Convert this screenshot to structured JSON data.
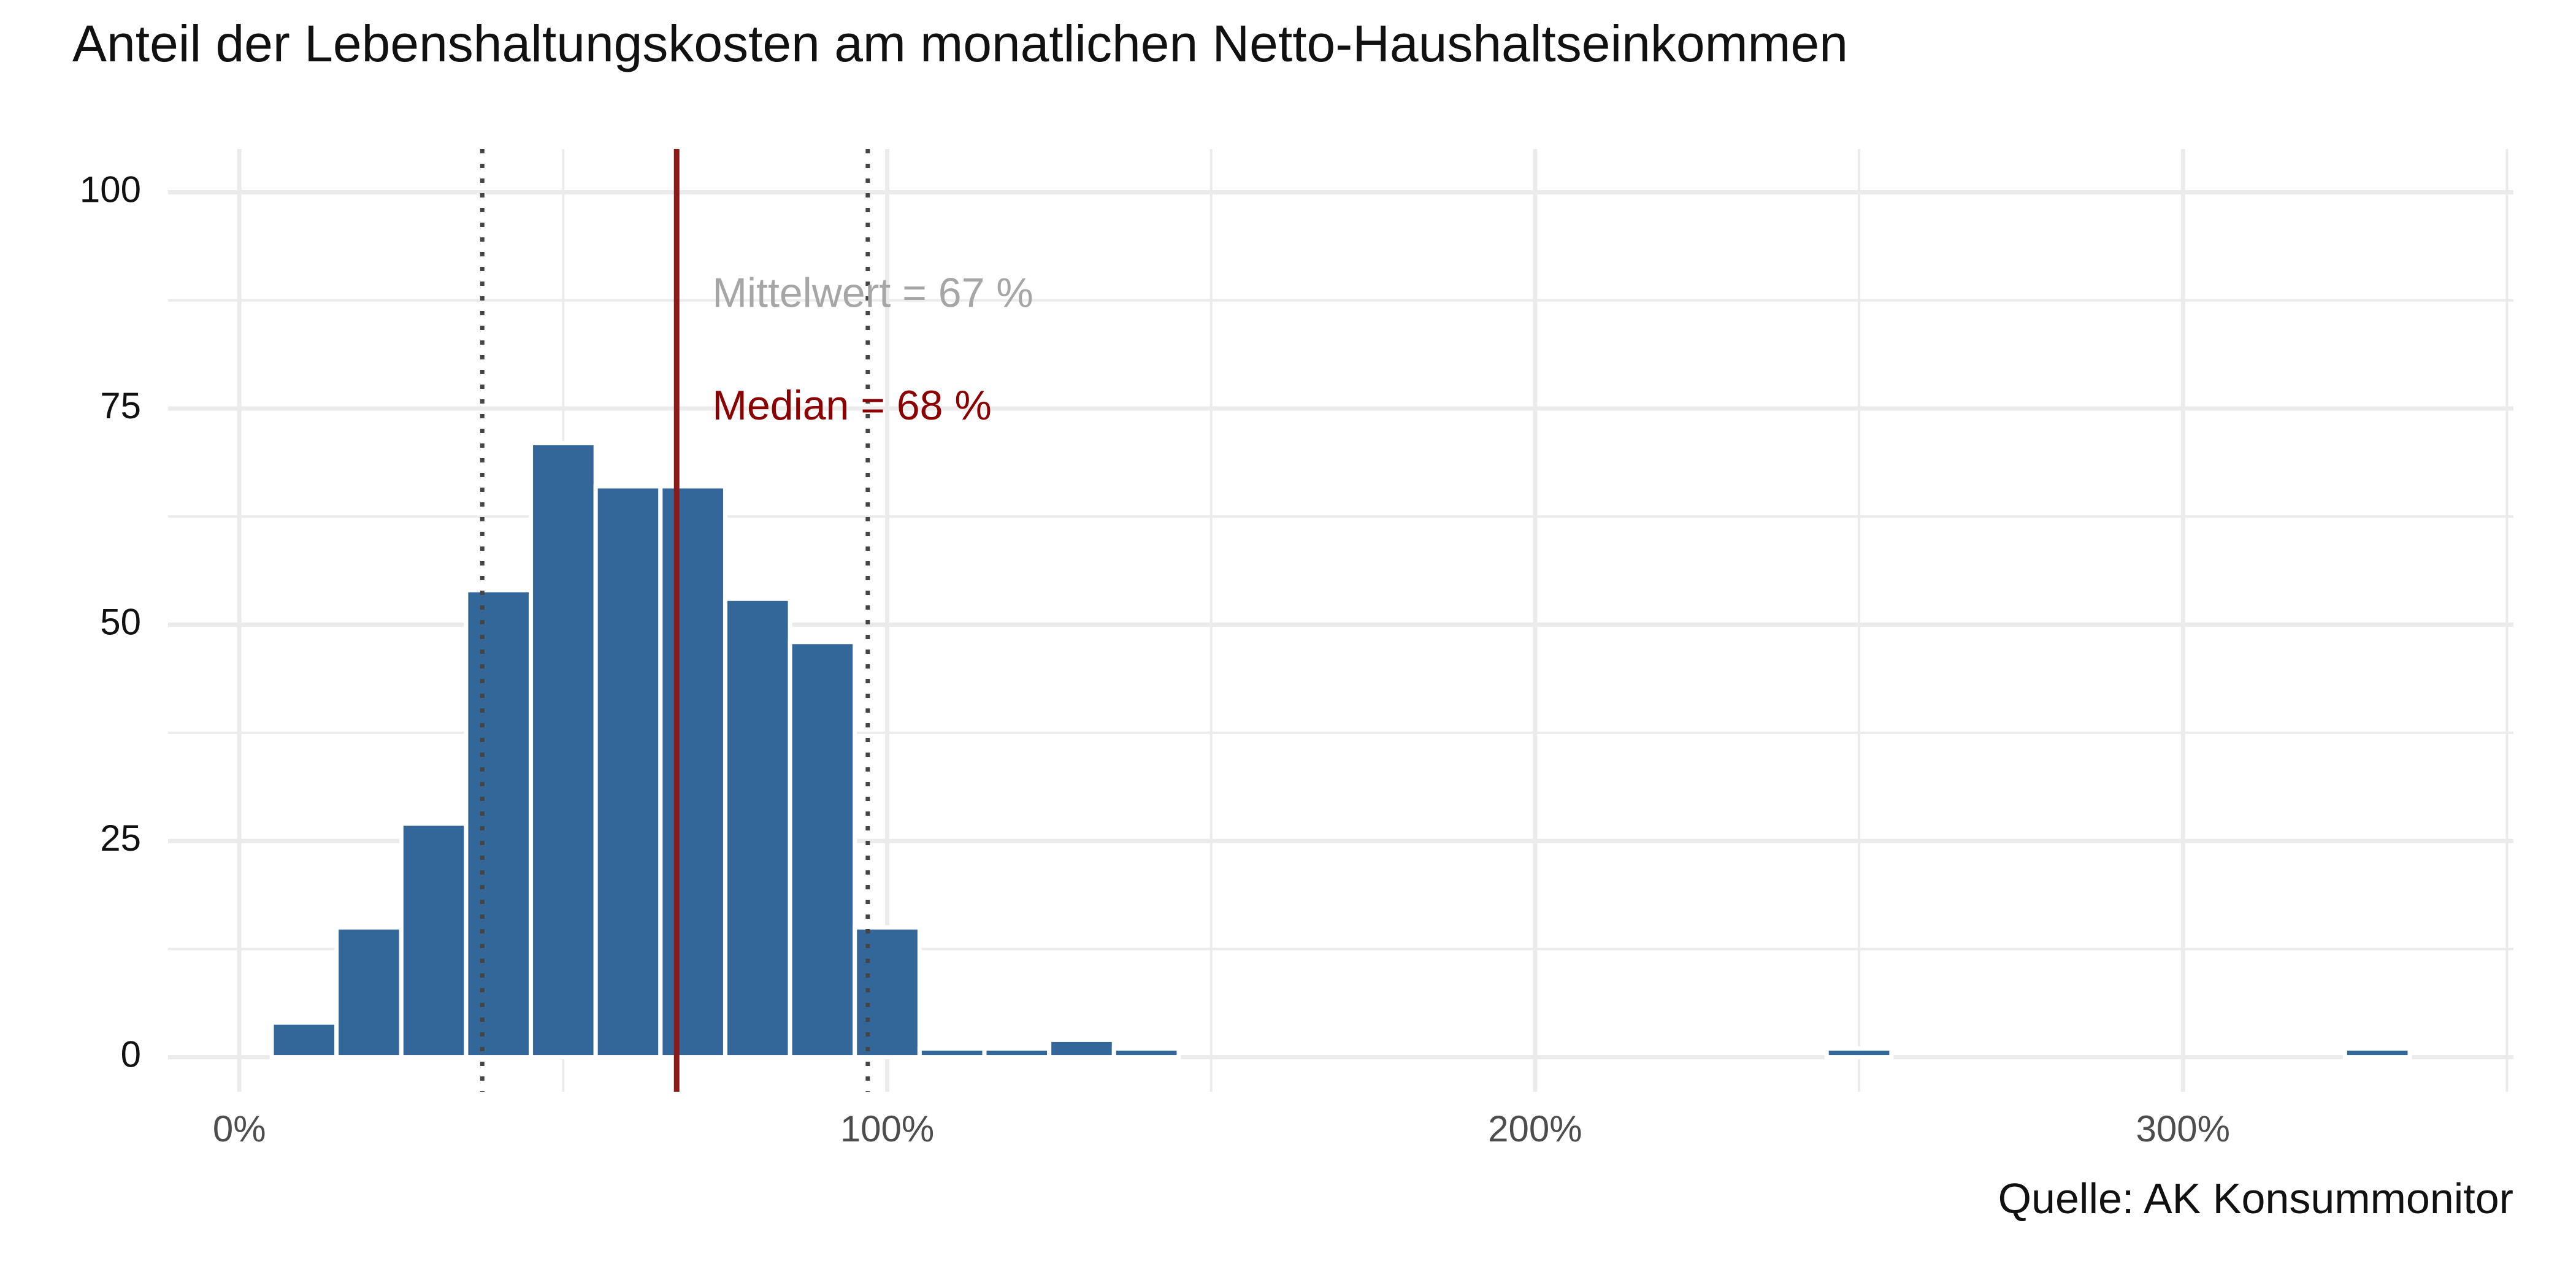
{
  "chart_data": {
    "type": "bar",
    "title": "Anteil der Lebenshaltungskosten am monatlichen Netto-Haushaltseinkommen",
    "xlabel": "",
    "ylabel": "",
    "caption": "Quelle: AK Konsummonitor",
    "xlim": [
      -11,
      351
    ],
    "ylim": [
      -4,
      105
    ],
    "x_ticks": [
      0,
      100,
      200,
      300
    ],
    "x_tick_labels": [
      "0%",
      "100%",
      "200%",
      "300%"
    ],
    "y_ticks": [
      0,
      25,
      50,
      75,
      100
    ],
    "y_tick_labels": [
      "0",
      "25",
      "50",
      "75",
      "100"
    ],
    "grid": true,
    "bin_width": 10,
    "bins": [
      {
        "x": 0,
        "count": 0
      },
      {
        "x": 10,
        "count": 4
      },
      {
        "x": 20,
        "count": 15
      },
      {
        "x": 30,
        "count": 27
      },
      {
        "x": 40,
        "count": 54
      },
      {
        "x": 50,
        "count": 71
      },
      {
        "x": 60,
        "count": 66
      },
      {
        "x": 70,
        "count": 66
      },
      {
        "x": 80,
        "count": 53
      },
      {
        "x": 90,
        "count": 48
      },
      {
        "x": 100,
        "count": 15
      },
      {
        "x": 110,
        "count": 1
      },
      {
        "x": 120,
        "count": 1
      },
      {
        "x": 130,
        "count": 2
      },
      {
        "x": 140,
        "count": 1
      },
      {
        "x": 250,
        "count": 1
      },
      {
        "x": 330,
        "count": 1
      }
    ],
    "bar_color": "#336699",
    "reference_lines": [
      {
        "x": 37.5,
        "style": "dotted",
        "color": "#444444"
      },
      {
        "x": 97,
        "style": "dotted",
        "color": "#444444"
      },
      {
        "x": 67.5,
        "style": "solid",
        "color": "#8b1a1a"
      }
    ],
    "annotations": [
      {
        "text": "Mittelwert = 67 %",
        "x": 73,
        "y": 88,
        "color": "#a6a6a6"
      },
      {
        "text": "Median = 68 %",
        "x": 73,
        "y": 75,
        "color": "#8b0000"
      }
    ]
  }
}
